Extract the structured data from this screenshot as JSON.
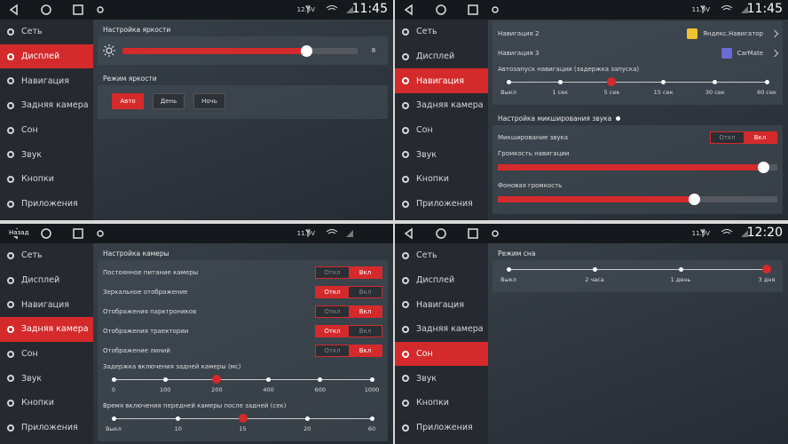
{
  "panels": [
    {
      "status": {
        "voltage": "12.8V",
        "time": "11:45"
      },
      "menu": [
        {
          "label": "Сеть"
        },
        {
          "label": "Дисплей",
          "active": true
        },
        {
          "label": "Навигация"
        },
        {
          "label": "Задняя камера"
        },
        {
          "label": "Сон"
        },
        {
          "label": "Звук"
        },
        {
          "label": "Кнопки"
        },
        {
          "label": "Приложения"
        }
      ],
      "content": [
        {
          "title": "Настройка яркости",
          "items": [
            {
              "kind": "brightness",
              "value": 8
            }
          ]
        },
        {
          "title": "Режим яркости",
          "items": [
            {
              "kind": "buttons",
              "options": [
                "Авто",
                "День",
                "Ночь"
              ],
              "selected": 0
            }
          ]
        }
      ]
    },
    {
      "status": {
        "voltage": "11.9V",
        "time": "11:45"
      },
      "menu": [
        {
          "label": "Сеть"
        },
        {
          "label": "Дисплей"
        },
        {
          "label": "Навигация",
          "active": true
        },
        {
          "label": "Задняя камера"
        },
        {
          "label": "Сон"
        },
        {
          "label": "Звук"
        },
        {
          "label": "Кнопки"
        },
        {
          "label": "Приложения"
        }
      ],
      "content": [
        {
          "items": [
            {
              "kind": "app",
              "label": "Навигация 2",
              "app": "Яндекс.Навигатор",
              "color": "#f2c230"
            },
            {
              "kind": "app",
              "label": "Навигация 3",
              "app": "CarMate",
              "color": "#6b6bd8"
            },
            {
              "kind": "ticks",
              "label": "Автозапуск навигации (задержка запуска)",
              "ticks": [
                "Выкл",
                "1 сек",
                "5 сек",
                "15 сек",
                "30 сек",
                "60 сек"
              ],
              "selected": 2
            }
          ]
        },
        {
          "title": "Настройка микширования звука",
          "items": [
            {
              "kind": "toggle",
              "label": "Микширование звука",
              "options": [
                "Откл",
                "Вкл"
              ],
              "selected": 1
            },
            {
              "kind": "slider",
              "label": "Громкость навигации",
              "value": 95
            },
            {
              "kind": "slider",
              "label": "Фоновая громкость",
              "value": 70
            }
          ]
        }
      ]
    },
    {
      "status": {
        "voltage": "11.9V",
        "back_label": "Назад"
      },
      "menu": [
        {
          "label": "Сеть"
        },
        {
          "label": "Дисплей"
        },
        {
          "label": "Навигация"
        },
        {
          "label": "Задняя камера",
          "active": true
        },
        {
          "label": "Сон"
        },
        {
          "label": "Звук"
        },
        {
          "label": "Кнопки"
        },
        {
          "label": "Приложения"
        }
      ],
      "content": [
        {
          "title": "Настройка камеры",
          "items": [
            {
              "kind": "toggle",
              "label": "Постоянное питание камеры",
              "options": [
                "Откл",
                "Вкл"
              ],
              "selected": 1
            },
            {
              "kind": "toggle",
              "label": "Зеркальное отображение",
              "options": [
                "Откл",
                "Вкл"
              ],
              "selected": 0
            },
            {
              "kind": "toggle",
              "label": "Отображения парктроников",
              "options": [
                "Откл",
                "Вкл"
              ],
              "selected": 1
            },
            {
              "kind": "toggle",
              "label": "Отображения траектории",
              "options": [
                "Откл",
                "Вкл"
              ],
              "selected": 0
            },
            {
              "kind": "toggle",
              "label": "Отображение линий",
              "options": [
                "Откл",
                "Вкл"
              ],
              "selected": 1
            },
            {
              "kind": "ticks",
              "label": "Задержка включения задней камеры (мс)",
              "ticks": [
                "0",
                "100",
                "200",
                "400",
                "600",
                "1000"
              ],
              "selected": 2
            },
            {
              "kind": "ticks",
              "label": "Время включения передней камеры после задней (сек)",
              "ticks": [
                "Выкл",
                "10",
                "15",
                "20",
                "60"
              ],
              "selected": 2
            }
          ]
        }
      ]
    },
    {
      "status": {
        "voltage": "11.9V",
        "time": "12:20"
      },
      "menu": [
        {
          "label": "Сеть"
        },
        {
          "label": "Дисплей"
        },
        {
          "label": "Навигация"
        },
        {
          "label": "Задняя камера"
        },
        {
          "label": "Сон",
          "active": true
        },
        {
          "label": "Звук"
        },
        {
          "label": "Кнопки"
        },
        {
          "label": "Приложения"
        }
      ],
      "content": [
        {
          "title": "Режим сна",
          "items": [
            {
              "kind": "ticks",
              "ticks": [
                "Выкл",
                "2 часа",
                "1 день",
                "3 дня"
              ],
              "selected": 3
            }
          ]
        }
      ]
    }
  ]
}
